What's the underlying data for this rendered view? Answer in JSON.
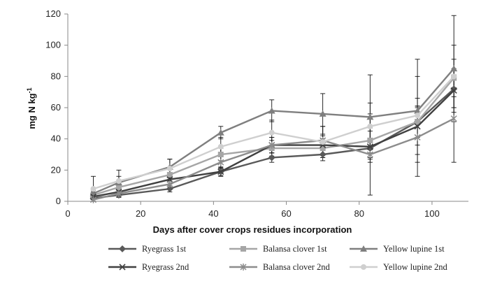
{
  "chart_data": {
    "type": "line",
    "xlabel": "Days after cover crops residues incorporation",
    "ylabel": "mg N kg",
    "ylabel_superscript": "-1",
    "xlim": [
      0,
      110
    ],
    "ylim": [
      0,
      120
    ],
    "x_ticks": [
      "0",
      "20",
      "40",
      "60",
      "80",
      "100"
    ],
    "y_ticks": [
      "0",
      "20",
      "40",
      "60",
      "80",
      "100",
      "120"
    ],
    "grid": false,
    "legend_position": "bottom",
    "x": [
      7,
      14,
      28,
      42,
      56,
      70,
      83,
      96,
      106
    ],
    "series": [
      {
        "name": "Ryegrass 1st",
        "marker": "diamond",
        "color": "#595959",
        "values": [
          2,
          4,
          8,
          19,
          28,
          30,
          34,
          51,
          72
        ],
        "errors": [
          1,
          1.5,
          2,
          2.5,
          3,
          4,
          6,
          10,
          12
        ]
      },
      {
        "name": "Balansa clover 1st",
        "marker": "square",
        "color": "#a6a6a6",
        "values": [
          4,
          9,
          17,
          30,
          34,
          34,
          39,
          51,
          79
        ],
        "errors": [
          2,
          3,
          4,
          4,
          5,
          6,
          8,
          10,
          12
        ]
      },
      {
        "name": "Yellow lupine 1st",
        "marker": "triangle",
        "color": "#7f7f7f",
        "values": [
          5,
          12,
          22,
          44,
          58,
          56,
          54,
          58,
          85
        ],
        "errors": [
          2,
          4,
          5,
          4,
          7,
          13,
          27,
          33,
          34
        ]
      },
      {
        "name": "Ryegrass 2nd",
        "marker": "x",
        "color": "#404040",
        "values": [
          3,
          6,
          14,
          19,
          36,
          36,
          35,
          48,
          71
        ],
        "errors": [
          1,
          2,
          3,
          3,
          5,
          6,
          10,
          12,
          14
        ]
      },
      {
        "name": "Balansa clover 2nd",
        "marker": "asterisk",
        "color": "#8c8c8c",
        "values": [
          1,
          5,
          11,
          25,
          36,
          39,
          30,
          41,
          53
        ],
        "errors": [
          1,
          2,
          3,
          4,
          5,
          9,
          26,
          25,
          28
        ]
      },
      {
        "name": "Yellow lupine 2nd",
        "marker": "circle",
        "color": "#cfcfcf",
        "values": [
          8,
          13,
          21,
          35,
          44,
          38,
          48,
          55,
          80
        ],
        "errors": [
          8,
          7,
          6,
          6,
          8,
          10,
          15,
          25,
          20
        ]
      }
    ]
  }
}
